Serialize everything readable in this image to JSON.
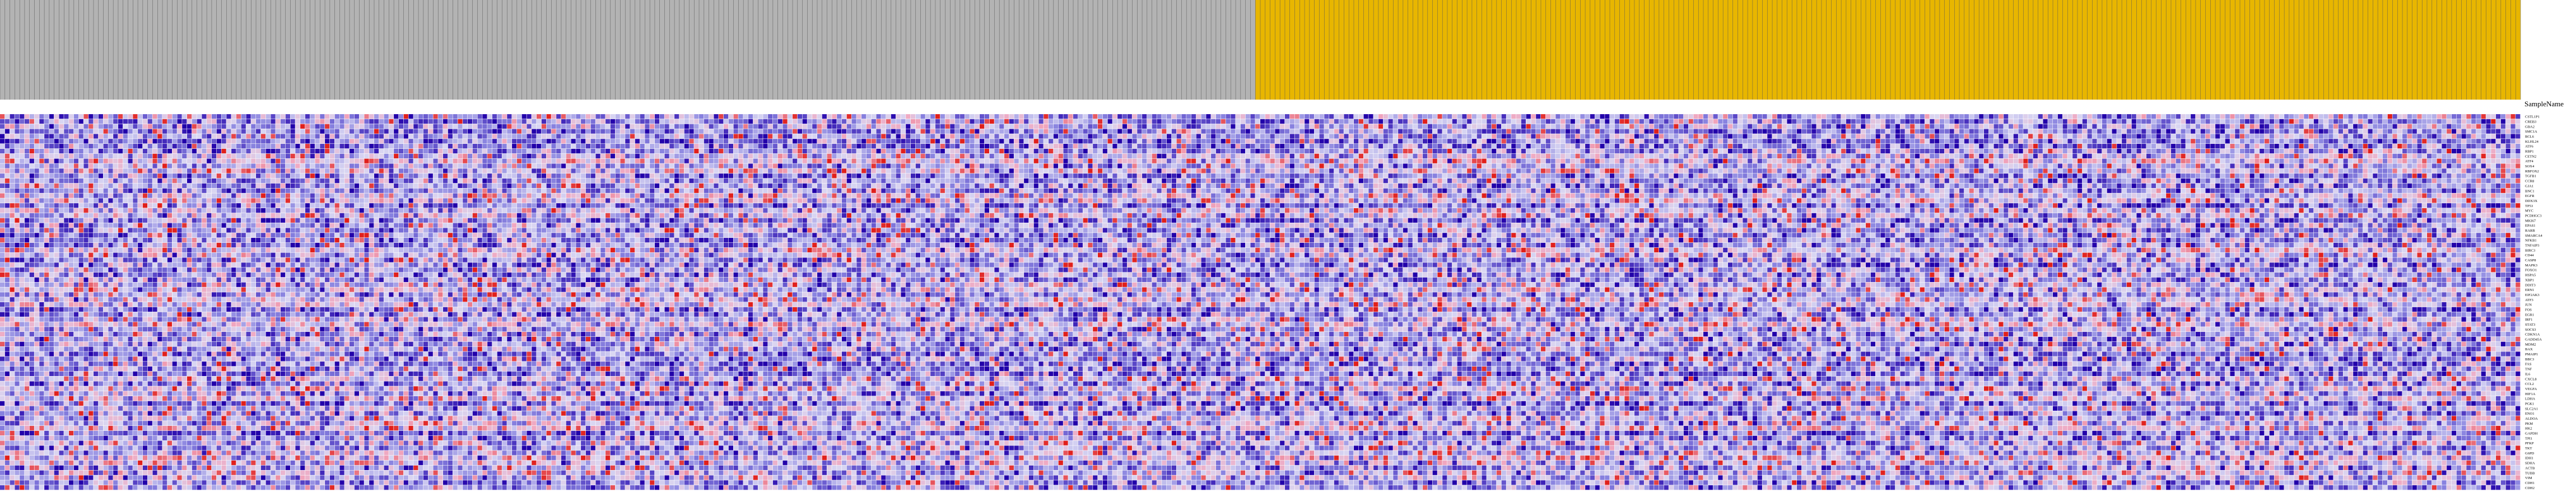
{
  "chart_data": {
    "type": "heatmap",
    "title": "",
    "column_header_label": "SampleName",
    "n_columns": 512,
    "class_groups": [
      {
        "name": "",
        "color": "#b3b3b3",
        "count": 255
      },
      {
        "name": "",
        "color": "#e8b600",
        "count": 257
      }
    ],
    "rows": [
      "CSTL1P1",
      "CREB3",
      "GBA2",
      "SMC1A",
      "BCL6",
      "KLHL24",
      "ATF6",
      "RBP1",
      "CETN2",
      "ATF4",
      "SOX4",
      "RBFOX2",
      "TGFB1",
      "CCR8",
      "GJA1",
      "BNC1",
      "EGFR",
      "DDX3X",
      "TP53",
      "MYC",
      "PCDHGC3",
      "MKI67",
      "EPAS1",
      "RARB",
      "SMARCA4",
      "NFKB1",
      "TNFAIP3",
      "BIRC3",
      "CD44",
      "CASP8",
      "MAPK3",
      "FOXO1",
      "HSPA5",
      "XBP1",
      "DDIT3",
      "ERN1",
      "EIF2AK3",
      "ATF3",
      "JUN",
      "FOS",
      "EGR1",
      "IRF1",
      "STAT3",
      "SOCS3",
      "CDKN1A",
      "GADD45A",
      "MDM2",
      "BAX",
      "PMAIP1",
      "BBC3",
      "FAS",
      "TNF",
      "IL6",
      "CXCL8",
      "CCL2",
      "VEGFA",
      "HIF1A",
      "LDHA",
      "PGK1",
      "SLC2A1",
      "ENO1",
      "ALDOA",
      "PKM",
      "HK2",
      "GAPDH",
      "TPI1",
      "PFKP",
      "TKT",
      "G6PD",
      "IDH1",
      "SDHA",
      "ACTB",
      "TUBB",
      "VIM",
      "CDH1",
      "CDH2"
    ],
    "colorscale": {
      "min": -3,
      "max": 3,
      "low": "#2200aa",
      "mid_low": "#8a84e0",
      "mid": "#d9d6f2",
      "mid_high": "#f0a7c0",
      "high": "#e0201c"
    },
    "values_note_seed": 20240517
  }
}
